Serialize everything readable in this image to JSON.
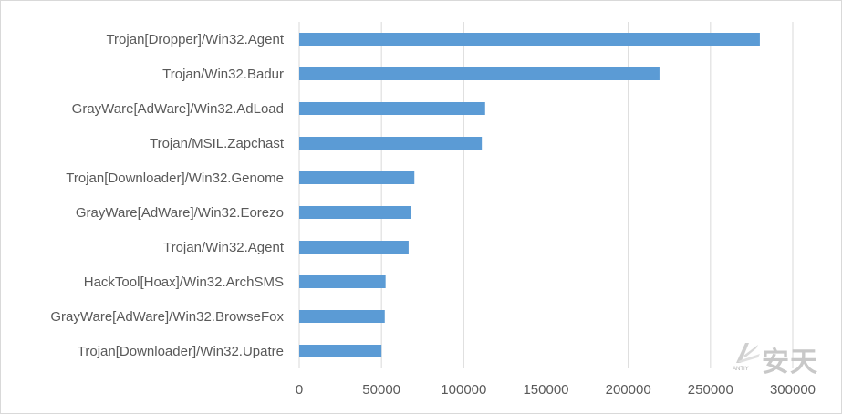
{
  "chart_data": {
    "type": "bar",
    "orientation": "horizontal",
    "categories": [
      "Trojan[Dropper]/Win32.Agent",
      "Trojan/Win32.Badur",
      "GrayWare[AdWare]/Win32.AdLoad",
      "Trojan/MSIL.Zapchast",
      "Trojan[Downloader]/Win32.Genome",
      "GrayWare[AdWare]/Win32.Eorezo",
      "Trojan/Win32.Agent",
      "HackTool[Hoax]/Win32.ArchSMS",
      "GrayWare[AdWare]/Win32.BrowseFox",
      "Trojan[Downloader]/Win32.Upatre"
    ],
    "values": [
      280000,
      219000,
      113000,
      111000,
      70000,
      68000,
      66500,
      52500,
      52000,
      50000
    ],
    "xlim": [
      0,
      300000
    ],
    "xticks": [
      "0",
      "50000",
      "100000",
      "150000",
      "200000",
      "250000",
      "300000"
    ],
    "grid": true,
    "bar_color": "#5b9bd5",
    "grid_color": "#d9d9d9"
  },
  "watermark": {
    "text": "安天",
    "small_text": "ANTIY"
  }
}
